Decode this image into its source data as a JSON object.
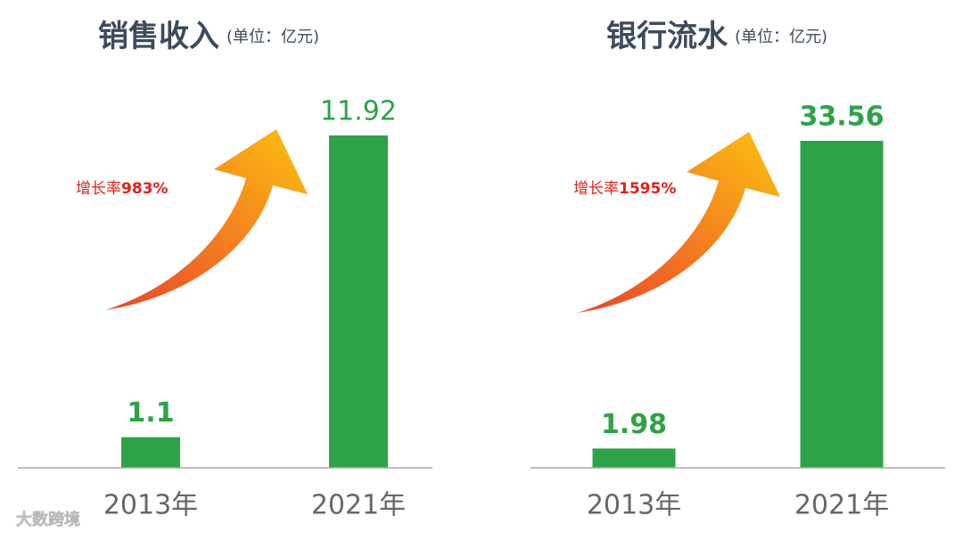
{
  "chart_data": [
    {
      "type": "bar",
      "title": "销售收入",
      "subtitle": "(单位：亿元)",
      "categories": [
        "2013年",
        "2021年"
      ],
      "values": [
        1.1,
        11.92
      ],
      "color": "#2ea248",
      "annotation": [
        "增长率",
        "983%"
      ]
    },
    {
      "type": "bar",
      "title": "银行流水",
      "subtitle": "(单位：亿元)",
      "categories": [
        "2013年",
        "2021年"
      ],
      "values": [
        1.98,
        33.56
      ],
      "color": "#2ea248",
      "annotation": [
        "增长率",
        "1595%"
      ]
    }
  ],
  "watermark": "大数跨境"
}
